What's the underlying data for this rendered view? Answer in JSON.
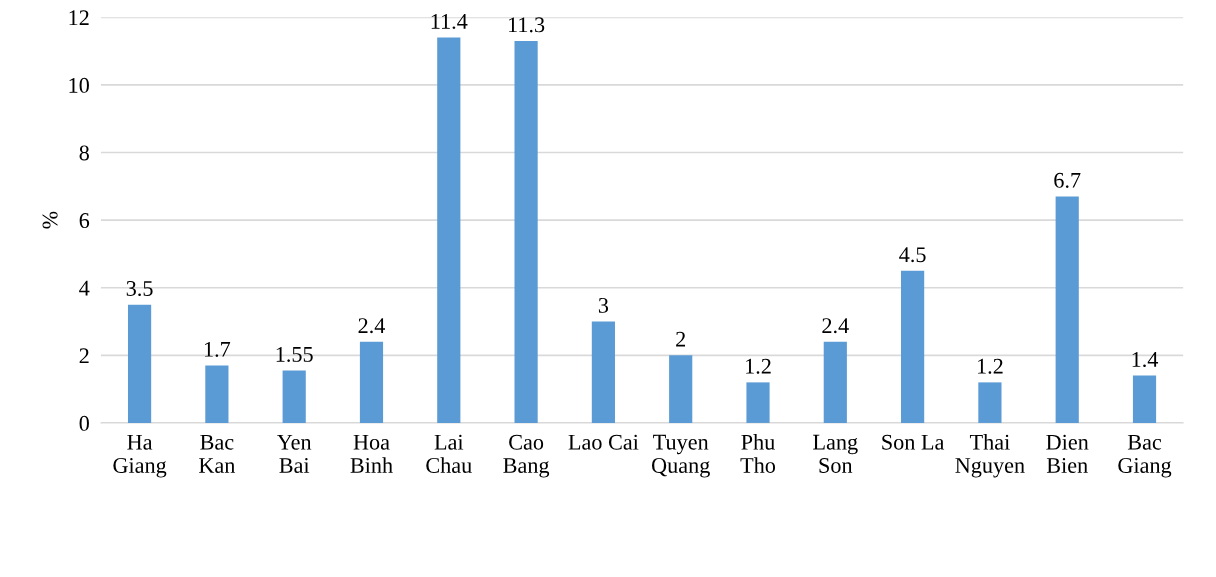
{
  "chart_data": {
    "type": "bar",
    "ylabel": "%",
    "categories": [
      "Ha\nGiang",
      "Bac\nKan",
      "Yen\nBai",
      "Hoa\nBinh",
      "Lai\nChau",
      "Cao\nBang",
      "Lao Cai",
      "Tuyen\nQuang",
      "Phu\nTho",
      "Lang\nSon",
      "Son La",
      "Thai\nNguyen",
      "Dien\nBien",
      "Bac\nGiang"
    ],
    "values": [
      3.5,
      1.7,
      1.55,
      2.4,
      11.4,
      11.3,
      3,
      2,
      1.2,
      2.4,
      4.5,
      1.2,
      6.7,
      1.4
    ],
    "color": "#5b9bd5",
    "ylim": [
      0,
      12
    ],
    "yticks": [
      0,
      2,
      4,
      6,
      8,
      10,
      12
    ],
    "grid": "y",
    "data_labels": true,
    "legend": false
  }
}
